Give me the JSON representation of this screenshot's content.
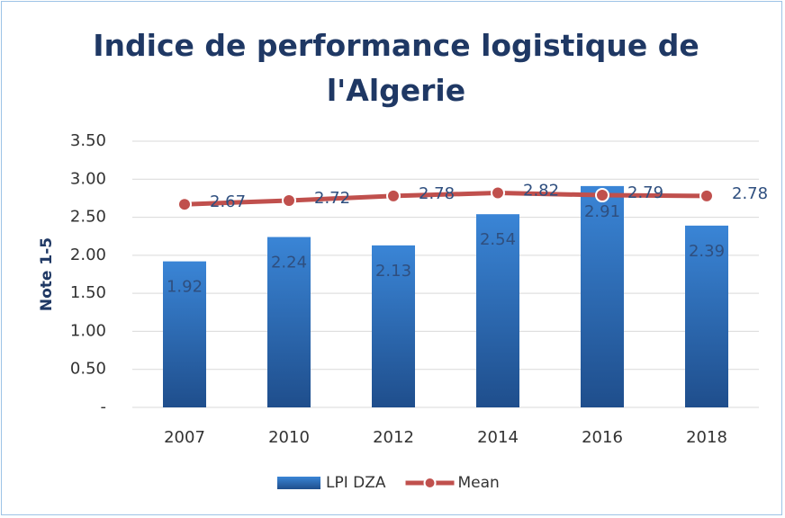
{
  "chart_data": {
    "type": "bar_line",
    "title": "Indice de performance logistique de l'Algerie",
    "y_axis_label": "Note 1-5",
    "categories": [
      "2007",
      "2010",
      "2012",
      "2014",
      "2016",
      "2018"
    ],
    "ylim": [
      0,
      3.5
    ],
    "yticks": [
      {
        "value": 0,
        "label": "-"
      },
      {
        "value": 0.5,
        "label": "0.50"
      },
      {
        "value": 1,
        "label": "1.00"
      },
      {
        "value": 1.5,
        "label": "1.50"
      },
      {
        "value": 2,
        "label": "2.00"
      },
      {
        "value": 2.5,
        "label": "2.50"
      },
      {
        "value": 3,
        "label": "3.00"
      },
      {
        "value": 3.5,
        "label": "3.50"
      }
    ],
    "grid": true,
    "legend": "bottom",
    "series": [
      {
        "name": "LPI DZA",
        "type": "bar",
        "color": "#2e75c4",
        "values": [
          1.92,
          2.24,
          2.13,
          2.54,
          2.91,
          2.39
        ]
      },
      {
        "name": "Mean",
        "type": "line",
        "color": "#c0504d",
        "values": [
          2.67,
          2.72,
          2.78,
          2.82,
          2.79,
          2.78
        ]
      }
    ]
  }
}
